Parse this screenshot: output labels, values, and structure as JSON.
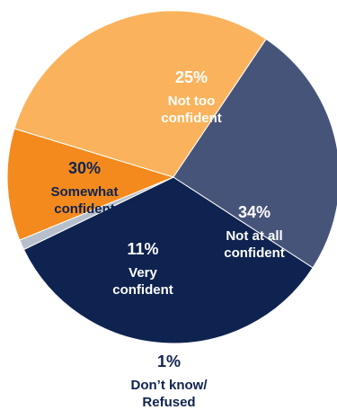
{
  "chart_data": {
    "type": "pie",
    "slices": [
      {
        "value": 34,
        "value_label": "34%",
        "label_lines": [
          "Not at all",
          "confident"
        ],
        "color": "#0f2350",
        "text_color": "#ffffff"
      },
      {
        "value": 1,
        "value_label": "1%",
        "label_lines": [
          "Don’t know/",
          "Refused"
        ],
        "color": "#b7bfcc",
        "text_color": "#0f2350"
      },
      {
        "value": 11,
        "value_label": "11%",
        "label_lines": [
          "Very",
          "confident"
        ],
        "color": "#f48a1d",
        "text_color": "#ffffff"
      },
      {
        "value": 30,
        "value_label": "30%",
        "label_lines": [
          "Somewhat",
          "confident"
        ],
        "color": "#fab35c",
        "text_color": "#0f2350"
      },
      {
        "value": 25,
        "value_label": "25%",
        "label_lines": [
          "Not too",
          "confident"
        ],
        "color": "#465479",
        "text_color": "#ffffff"
      }
    ]
  }
}
